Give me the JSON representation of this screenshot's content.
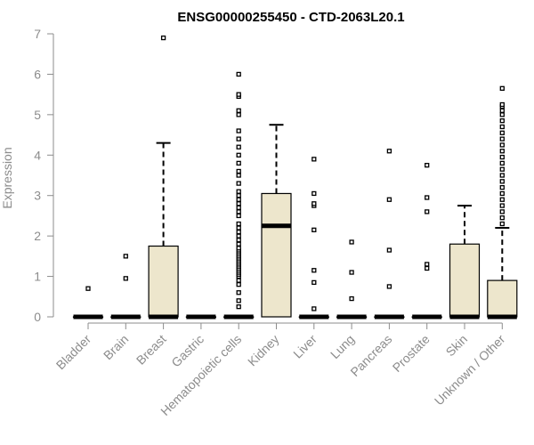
{
  "chart_data": {
    "type": "box",
    "title": "ENSG00000255450 - CTD-2063L20.1",
    "xlabel": "",
    "ylabel": "Expression",
    "ylim": [
      0,
      7
    ],
    "yticks": [
      0,
      1,
      2,
      3,
      4,
      5,
      6,
      7
    ],
    "box_color": "#ede6cc",
    "categories": [
      "Bladder",
      "Brain",
      "Breast",
      "Gastric",
      "Hematopoietic cells",
      "Kidney",
      "Liver",
      "Lung",
      "Pancreas",
      "Prostate",
      "Skin",
      "Unknown / Other"
    ],
    "series": [
      {
        "category": "Bladder",
        "min": 0,
        "q1": 0,
        "median": 0,
        "q3": 0,
        "max": 0,
        "outliers": [
          0.7
        ]
      },
      {
        "category": "Brain",
        "min": 0,
        "q1": 0,
        "median": 0,
        "q3": 0,
        "max": 0,
        "outliers": [
          0.95,
          1.5
        ]
      },
      {
        "category": "Breast",
        "min": 0,
        "q1": 0,
        "median": 0,
        "q3": 1.75,
        "max": 4.3,
        "outliers": [
          6.9
        ]
      },
      {
        "category": "Gastric",
        "min": 0,
        "q1": 0,
        "median": 0,
        "q3": 0,
        "max": 0,
        "outliers": []
      },
      {
        "category": "Hematopoietic cells",
        "min": 0,
        "q1": 0,
        "median": 0,
        "q3": 0,
        "max": 0,
        "outliers": [
          0.25,
          0.4,
          0.6,
          0.8,
          0.9,
          1.0,
          1.05,
          1.1,
          1.15,
          1.2,
          1.25,
          1.3,
          1.35,
          1.4,
          1.45,
          1.5,
          1.55,
          1.6,
          1.65,
          1.7,
          1.8,
          1.9,
          2.0,
          2.1,
          2.2,
          2.3,
          2.5,
          2.6,
          2.7,
          2.8,
          2.9,
          3.0,
          3.1,
          3.3,
          3.5,
          3.6,
          3.8,
          4.0,
          4.2,
          4.4,
          4.6,
          5.0,
          5.1,
          5.45,
          5.5,
          6.0
        ]
      },
      {
        "category": "Kidney",
        "min": 0,
        "q1": 0,
        "median": 2.25,
        "q3": 3.05,
        "max": 4.75,
        "outliers": []
      },
      {
        "category": "Liver",
        "min": 0,
        "q1": 0,
        "median": 0,
        "q3": 0,
        "max": 0,
        "outliers": [
          0.2,
          0.85,
          1.15,
          2.15,
          2.75,
          2.8,
          3.05,
          3.9
        ]
      },
      {
        "category": "Lung",
        "min": 0,
        "q1": 0,
        "median": 0,
        "q3": 0,
        "max": 0,
        "outliers": [
          0.45,
          1.1,
          1.85
        ]
      },
      {
        "category": "Pancreas",
        "min": 0,
        "q1": 0,
        "median": 0,
        "q3": 0,
        "max": 0,
        "outliers": [
          0.75,
          1.65,
          2.9,
          4.1
        ]
      },
      {
        "category": "Prostate",
        "min": 0,
        "q1": 0,
        "median": 0,
        "q3": 0,
        "max": 0,
        "outliers": [
          1.2,
          1.3,
          2.6,
          2.95,
          3.75
        ]
      },
      {
        "category": "Skin",
        "min": 0,
        "q1": 0,
        "median": 0,
        "q3": 1.8,
        "max": 2.75,
        "outliers": []
      },
      {
        "category": "Unknown / Other",
        "min": 0,
        "q1": 0,
        "median": 0,
        "q3": 0.9,
        "max": 2.2,
        "outliers": [
          2.3,
          2.45,
          2.6,
          2.75,
          2.9,
          3.05,
          3.2,
          3.35,
          3.5,
          3.65,
          3.8,
          3.95,
          4.1,
          4.25,
          4.4,
          4.55,
          4.7,
          4.85,
          5.0,
          5.1,
          5.2,
          5.25,
          5.65
        ]
      }
    ]
  }
}
